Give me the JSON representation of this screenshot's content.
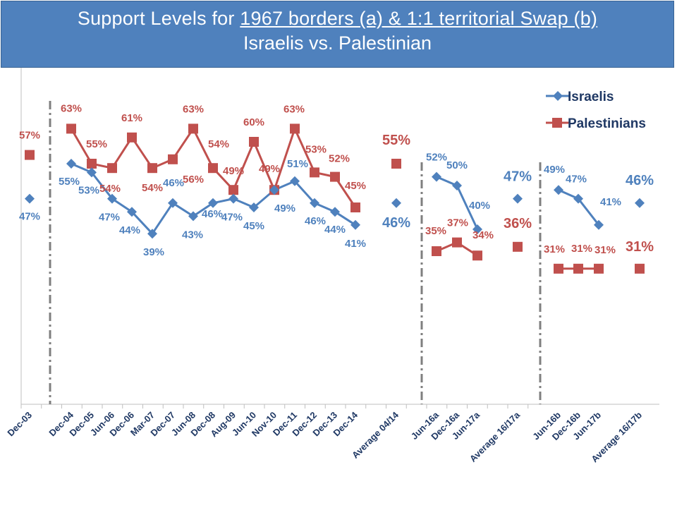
{
  "title": {
    "part1": "Support Levels for ",
    "part2": "1967 borders (a) & 1:1 territorial Swap (b)",
    "line2": "Israelis vs. Palestinian"
  },
  "colors": {
    "israelis": "#4f81bd",
    "palestinians": "#c0504d",
    "header_bg": "#4f81bd",
    "divider": "#7f7f7f"
  },
  "chart_data": {
    "type": "line",
    "ylim": [
      0,
      100
    ],
    "categories": [
      "Dec-03",
      "Dec-04",
      "Dec-05",
      "Jun-06",
      "Dec-06",
      "Mar-07",
      "Dec-07",
      "Jun-08",
      "Dec-08",
      "Aug-09",
      "Jun-10",
      "Nov-10",
      "Dec-11",
      "Dec-12",
      "Dec-13",
      "Dec-14",
      "Average 04/14",
      "Jun-16a",
      "Dec-16a",
      "Jun-17a",
      "Average 16/17a",
      "Jun-16b",
      "Dec-16b",
      "Jun-17b",
      "Average 16/17b"
    ],
    "series": [
      {
        "name": "Israelis",
        "values": [
          47,
          55,
          53,
          47,
          44,
          39,
          46,
          43,
          46,
          47,
          45,
          49,
          51,
          46,
          44,
          41,
          46,
          52,
          50,
          40,
          47,
          49,
          47,
          41,
          46
        ]
      },
      {
        "name": "Palestinians",
        "values": [
          57,
          63,
          55,
          54,
          61,
          54,
          56,
          63,
          54,
          49,
          60,
          49,
          63,
          53,
          52,
          45,
          55,
          35,
          37,
          34,
          36,
          31,
          31,
          31,
          31
        ]
      }
    ],
    "labels": {
      "Israelis": [
        "47%",
        "55%",
        "53%",
        "47%",
        "44%",
        "39%",
        "46%",
        "43%",
        "46%",
        "47%",
        "45%",
        "49%",
        "51%",
        "46%",
        "44%",
        "41%",
        "46%",
        "52%",
        "50%",
        "40%",
        "47%",
        "49%",
        "47%",
        "41%",
        "46%"
      ],
      "Palestinians": [
        "57%",
        "63%",
        "55%",
        "54%",
        "61%",
        "54%",
        "56%",
        "63%",
        "54%",
        "49%",
        "60%",
        "49%",
        "63%",
        "53%",
        "52%",
        "45%",
        "55%",
        "35%",
        "37%",
        "34%",
        "36%",
        "31%",
        "31%",
        "31%",
        "31%"
      ]
    },
    "legend": [
      "Israelis",
      "Palestinians"
    ],
    "legend_position": "top-right"
  }
}
